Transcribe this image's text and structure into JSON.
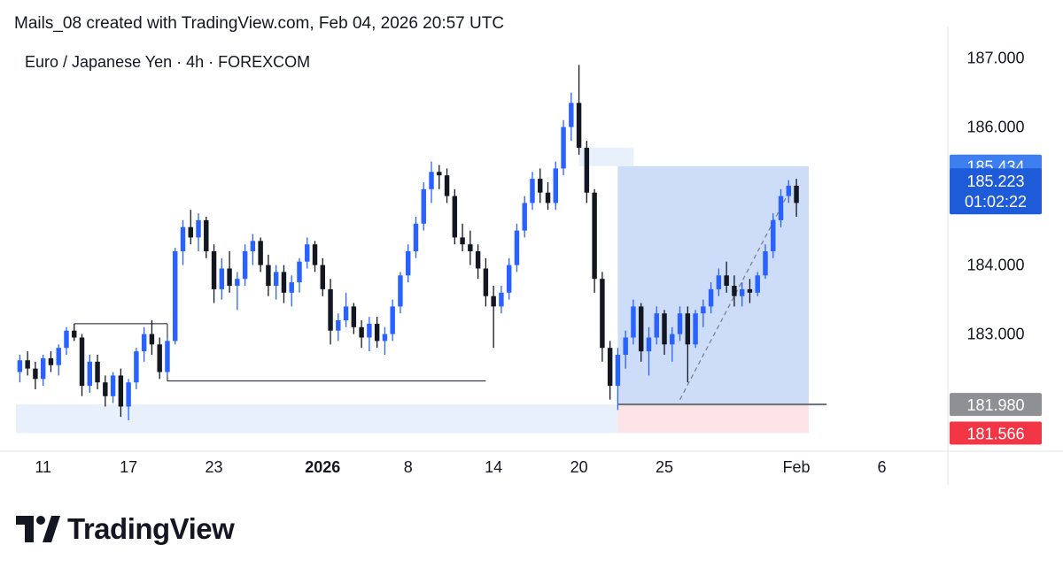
{
  "header": {
    "attribution": "Mails_08 created with TradingView.com, Feb 04, 2026 20:57 UTC"
  },
  "brand": {
    "name": "TradingView",
    "logo_icon": "tradingview-logo-icon"
  },
  "colors": {
    "bull": "#2962ff",
    "bear": "#131722",
    "zone_blue": "#c8d9f7",
    "zone_light": "#e8f0fc",
    "zone_red": "#fde4e6",
    "label_blue": "#3d7ff0",
    "label_current": "#1e5bd9",
    "label_grey": "#8e9094",
    "label_red": "#f23645",
    "axis_text": "#131722",
    "grid_line": "#e0e3eb"
  },
  "chart_data": {
    "type": "candlestick",
    "title": "Euro / Japanese Yen · 4h · FOREXCOM",
    "xlabel": "",
    "ylabel": "",
    "ylim": [
      181.2,
      187.2
    ],
    "grid": false,
    "y_ticks": [
      {
        "value": 187.0,
        "label": "187.000"
      },
      {
        "value": 186.0,
        "label": "186.000"
      },
      {
        "value": 184.0,
        "label": "184.000"
      },
      {
        "value": 183.0,
        "label": "183.000"
      }
    ],
    "x_ticks": [
      {
        "label": "11",
        "bar": 3,
        "bold": false
      },
      {
        "label": "17",
        "bar": 14,
        "bold": false
      },
      {
        "label": "23",
        "bar": 25,
        "bold": false
      },
      {
        "label": "2026",
        "bar": 39,
        "bold": true
      },
      {
        "label": "8",
        "bar": 50,
        "bold": false
      },
      {
        "label": "14",
        "bar": 61,
        "bold": false
      },
      {
        "label": "20",
        "bar": 72,
        "bold": false
      },
      {
        "label": "25",
        "bar": 83,
        "bold": false
      },
      {
        "label": "Feb",
        "bar": 100,
        "bold": false
      },
      {
        "label": "6",
        "bar": 111,
        "bold": false
      }
    ],
    "bars_total": 120,
    "candles": [
      [
        182.45,
        182.7,
        182.3,
        182.62
      ],
      [
        182.62,
        182.75,
        182.4,
        182.5
      ],
      [
        182.5,
        182.6,
        182.2,
        182.35
      ],
      [
        182.35,
        182.7,
        182.25,
        182.65
      ],
      [
        182.65,
        182.75,
        182.45,
        182.55
      ],
      [
        182.55,
        182.85,
        182.4,
        182.8
      ],
      [
        182.8,
        183.1,
        182.7,
        183.05
      ],
      [
        183.05,
        183.15,
        182.9,
        182.95
      ],
      [
        182.95,
        183.0,
        182.1,
        182.25
      ],
      [
        182.25,
        182.7,
        182.15,
        182.6
      ],
      [
        182.6,
        182.7,
        182.2,
        182.3
      ],
      [
        182.3,
        182.4,
        181.95,
        182.1
      ],
      [
        182.1,
        182.45,
        182.0,
        182.4
      ],
      [
        182.4,
        182.5,
        181.8,
        181.95
      ],
      [
        181.95,
        182.35,
        181.75,
        182.3
      ],
      [
        182.3,
        182.8,
        182.2,
        182.75
      ],
      [
        182.75,
        183.1,
        182.6,
        183.0
      ],
      [
        183.0,
        183.2,
        182.7,
        182.85
      ],
      [
        182.85,
        182.95,
        182.35,
        182.45
      ],
      [
        182.45,
        182.95,
        182.4,
        182.9
      ],
      [
        182.9,
        184.25,
        182.85,
        184.2
      ],
      [
        184.2,
        184.65,
        184.0,
        184.55
      ],
      [
        184.55,
        184.8,
        184.3,
        184.4
      ],
      [
        184.4,
        184.75,
        184.2,
        184.65
      ],
      [
        184.65,
        184.7,
        184.1,
        184.2
      ],
      [
        184.2,
        184.3,
        183.45,
        183.65
      ],
      [
        183.65,
        184.1,
        183.5,
        183.95
      ],
      [
        183.95,
        184.2,
        183.6,
        183.7
      ],
      [
        183.7,
        183.9,
        183.35,
        183.8
      ],
      [
        183.8,
        184.3,
        183.7,
        184.2
      ],
      [
        184.2,
        184.45,
        184.0,
        184.35
      ],
      [
        184.35,
        184.4,
        183.9,
        184.0
      ],
      [
        184.0,
        184.15,
        183.55,
        183.7
      ],
      [
        183.7,
        184.0,
        183.5,
        183.9
      ],
      [
        183.9,
        184.0,
        183.45,
        183.6
      ],
      [
        183.6,
        183.85,
        183.4,
        183.75
      ],
      [
        183.75,
        184.1,
        183.6,
        184.05
      ],
      [
        184.05,
        184.4,
        183.95,
        184.3
      ],
      [
        184.3,
        184.35,
        183.9,
        184.0
      ],
      [
        184.0,
        184.1,
        183.55,
        183.65
      ],
      [
        183.65,
        183.8,
        182.85,
        183.05
      ],
      [
        183.05,
        183.3,
        182.9,
        183.2
      ],
      [
        183.2,
        183.6,
        183.1,
        183.4
      ],
      [
        183.4,
        183.45,
        183.0,
        183.1
      ],
      [
        183.1,
        183.2,
        182.8,
        182.95
      ],
      [
        182.95,
        183.25,
        182.75,
        183.15
      ],
      [
        183.15,
        183.25,
        182.8,
        182.9
      ],
      [
        182.9,
        183.1,
        182.7,
        183.0
      ],
      [
        183.0,
        183.5,
        182.9,
        183.4
      ],
      [
        183.4,
        183.9,
        183.3,
        183.85
      ],
      [
        183.85,
        184.3,
        183.75,
        184.2
      ],
      [
        184.2,
        184.7,
        184.1,
        184.6
      ],
      [
        184.6,
        185.2,
        184.5,
        185.1
      ],
      [
        185.1,
        185.5,
        184.9,
        185.35
      ],
      [
        185.35,
        185.45,
        185.1,
        185.3
      ],
      [
        185.3,
        185.4,
        184.9,
        185.0
      ],
      [
        185.0,
        185.1,
        184.3,
        184.4
      ],
      [
        184.4,
        184.6,
        184.2,
        184.3
      ],
      [
        184.3,
        184.5,
        184.0,
        184.2
      ],
      [
        184.2,
        184.3,
        183.8,
        183.95
      ],
      [
        183.95,
        184.1,
        183.4,
        183.55
      ],
      [
        183.55,
        183.7,
        182.8,
        183.4
      ],
      [
        183.4,
        183.7,
        183.3,
        183.6
      ],
      [
        183.6,
        184.1,
        183.5,
        184.0
      ],
      [
        184.0,
        184.6,
        183.9,
        184.5
      ],
      [
        184.5,
        185.0,
        184.4,
        184.9
      ],
      [
        184.9,
        185.35,
        184.8,
        185.25
      ],
      [
        185.25,
        185.4,
        184.9,
        185.05
      ],
      [
        185.05,
        185.2,
        184.8,
        184.9
      ],
      [
        184.9,
        185.5,
        184.8,
        185.4
      ],
      [
        185.4,
        186.1,
        185.3,
        186.0
      ],
      [
        186.0,
        186.5,
        185.8,
        186.35
      ],
      [
        186.35,
        186.9,
        185.6,
        185.7
      ],
      [
        185.7,
        185.8,
        184.9,
        185.05
      ],
      [
        185.05,
        185.1,
        183.6,
        183.8
      ],
      [
        183.8,
        183.9,
        182.6,
        182.8
      ],
      [
        182.8,
        182.9,
        182.05,
        182.25
      ],
      [
        182.25,
        182.8,
        181.9,
        182.7
      ],
      [
        182.7,
        183.05,
        182.5,
        182.95
      ],
      [
        182.95,
        183.5,
        182.85,
        183.4
      ],
      [
        183.4,
        183.45,
        182.6,
        182.75
      ],
      [
        182.75,
        183.1,
        182.4,
        182.95
      ],
      [
        182.95,
        183.4,
        182.85,
        183.3
      ],
      [
        183.3,
        183.35,
        182.7,
        182.85
      ],
      [
        182.85,
        183.1,
        182.6,
        183.0
      ],
      [
        183.0,
        183.4,
        182.9,
        183.3
      ],
      [
        183.3,
        183.4,
        182.3,
        182.85
      ],
      [
        182.85,
        183.35,
        182.8,
        183.3
      ],
      [
        183.3,
        183.5,
        183.1,
        183.4
      ],
      [
        183.4,
        183.75,
        183.3,
        183.65
      ],
      [
        183.65,
        183.95,
        183.55,
        183.85
      ],
      [
        183.85,
        184.05,
        183.6,
        183.7
      ],
      [
        183.7,
        183.85,
        183.4,
        183.55
      ],
      [
        183.55,
        183.75,
        183.4,
        183.65
      ],
      [
        183.65,
        183.8,
        183.45,
        183.6
      ],
      [
        183.6,
        183.9,
        183.55,
        183.85
      ],
      [
        183.85,
        184.3,
        183.8,
        184.2
      ],
      [
        184.2,
        184.75,
        184.1,
        184.65
      ],
      [
        184.65,
        185.1,
        184.55,
        185.0
      ],
      [
        185.0,
        185.23,
        184.9,
        185.15
      ],
      [
        185.15,
        185.25,
        184.7,
        184.9
      ]
    ],
    "levels": [
      {
        "name": "range-top",
        "value": 183.15
      },
      {
        "name": "swing-low",
        "value": 182.32
      }
    ],
    "zones": {
      "demand_low": 181.566,
      "demand_high": 181.98,
      "target_price": 185.434,
      "entry_price": 181.98,
      "stop_price": 181.566
    },
    "price_labels": [
      {
        "name": "target-label",
        "value": 185.434,
        "label": "185.434"
      },
      {
        "name": "current-label",
        "value": 185.223,
        "label": "185.223",
        "countdown": "01:02:22"
      },
      {
        "name": "entry-label",
        "value": 181.98,
        "label": "181.980"
      },
      {
        "name": "stop-label",
        "value": 181.566,
        "label": "181.566"
      }
    ]
  }
}
